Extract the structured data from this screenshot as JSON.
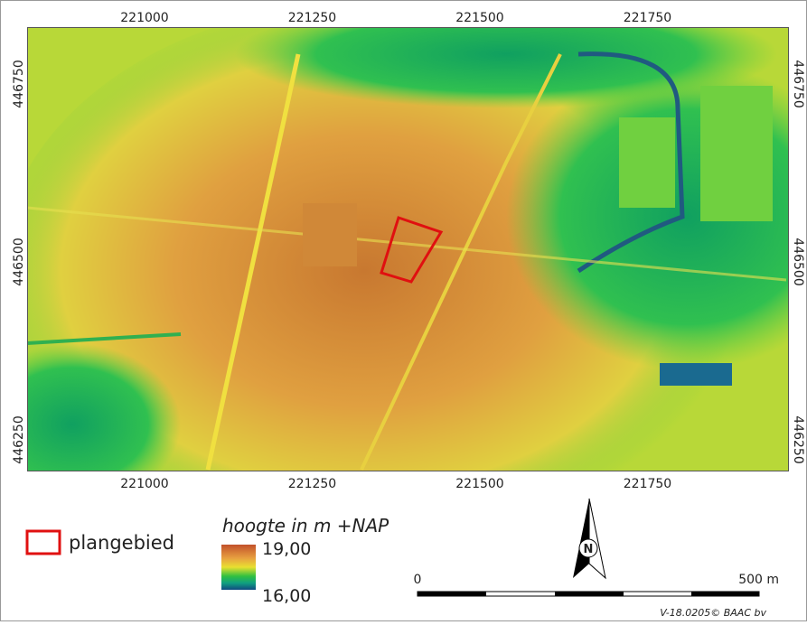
{
  "map": {
    "x_ticks": [
      221000,
      221250,
      221500,
      221750
    ],
    "y_ticks": [
      446750,
      446500,
      446250
    ],
    "legend": {
      "area_label": "plangebied",
      "elevation_title": "hoogte in m +NAP",
      "max_label": "19,00",
      "min_label": "16,00"
    },
    "scale_bar": {
      "start_label": "0",
      "end_label": "500 m"
    },
    "north_label": "N",
    "credit": "V-18.0205© BAAC bv"
  }
}
